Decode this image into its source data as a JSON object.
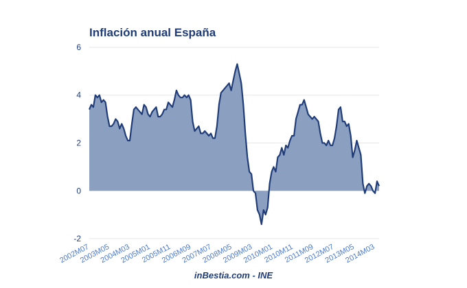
{
  "chart_data": {
    "type": "area",
    "title": "Inflación anual España",
    "source": "inBestia.com - INE",
    "xlabel": "",
    "ylabel": "",
    "ylim": [
      -2.2,
      6.2
    ],
    "yticks": [
      6,
      4,
      2,
      0,
      -2
    ],
    "x_start": "2002M07",
    "x_end": "2014M05",
    "x_tick_labels": [
      "2002M07",
      "2003M05",
      "2004M03",
      "2005M01",
      "2005M11",
      "2006M09",
      "2007M07",
      "2008M05",
      "2009M03",
      "2010M01",
      "2010M11",
      "2011M09",
      "2012M07",
      "2013M05",
      "2014M03"
    ],
    "grid": "horizontal",
    "colors": {
      "line": "#1f3c78",
      "fill": "#8b9fc1",
      "text": "#1f3c78",
      "tick_text": "#4a7ad1",
      "grid": "#e6e6e6"
    },
    "series": [
      {
        "values": [
          3.4,
          3.6,
          3.5,
          4.0,
          3.9,
          4.0,
          3.7,
          3.8,
          3.7,
          3.1,
          2.7,
          2.7,
          2.8,
          3.0,
          2.9,
          2.6,
          2.8,
          2.6,
          2.3,
          2.1,
          2.1,
          2.8,
          3.4,
          3.5,
          3.4,
          3.3,
          3.2,
          3.6,
          3.5,
          3.2,
          3.1,
          3.3,
          3.4,
          3.5,
          3.1,
          3.1,
          3.2,
          3.4,
          3.4,
          3.7,
          3.6,
          3.5,
          3.8,
          4.2,
          4.0,
          3.9,
          3.9,
          4.0,
          3.9,
          4.0,
          3.8,
          2.9,
          2.5,
          2.6,
          2.7,
          2.4,
          2.4,
          2.5,
          2.4,
          2.3,
          2.4,
          2.2,
          2.2,
          2.7,
          3.6,
          4.1,
          4.2,
          4.3,
          4.4,
          4.5,
          4.2,
          4.6,
          5.0,
          5.3,
          4.9,
          4.5,
          3.6,
          2.4,
          1.4,
          0.8,
          0.7,
          0.0,
          -0.1,
          -0.8,
          -1.0,
          -1.4,
          -0.8,
          -1.0,
          -0.7,
          0.3,
          0.8,
          1.0,
          0.8,
          1.4,
          1.5,
          1.8,
          1.5,
          1.9,
          1.8,
          2.1,
          2.3,
          2.3,
          3.0,
          3.3,
          3.6,
          3.6,
          3.8,
          3.5,
          3.2,
          3.1,
          3.0,
          3.1,
          3.0,
          2.9,
          2.4,
          2.0,
          2.0,
          1.9,
          2.1,
          1.9,
          1.9,
          2.2,
          2.7,
          3.4,
          3.5,
          2.9,
          2.9,
          2.7,
          2.8,
          2.3,
          1.4,
          1.7,
          2.1,
          1.8,
          1.5,
          0.3,
          -0.1,
          0.2,
          0.3,
          0.2,
          0.0,
          -0.1,
          0.4,
          0.2
        ]
      }
    ]
  }
}
